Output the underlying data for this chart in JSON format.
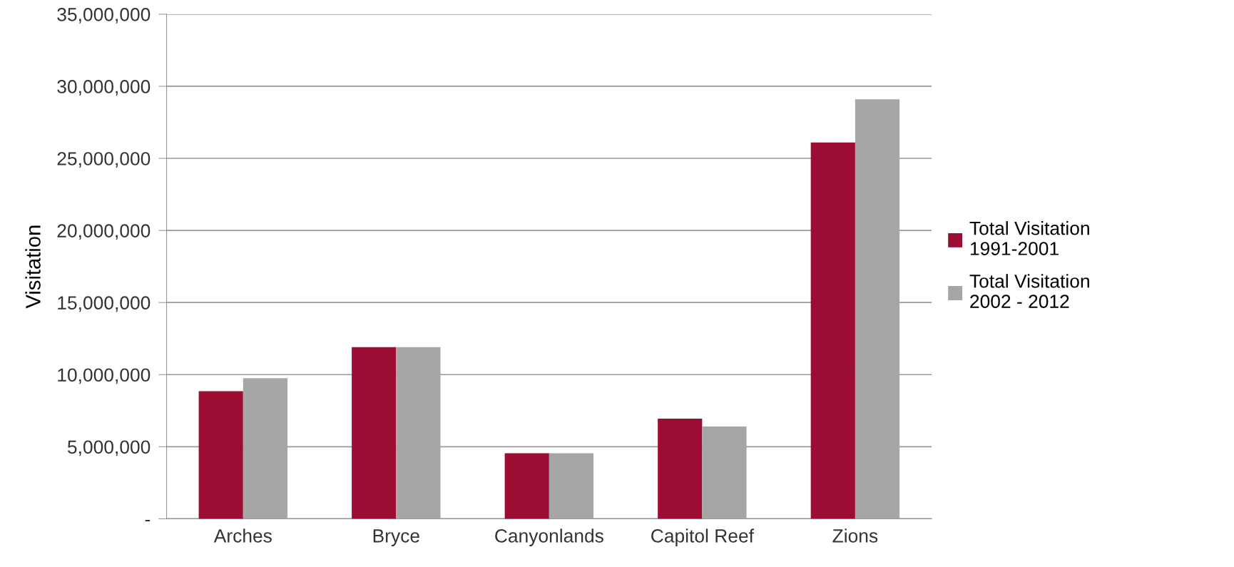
{
  "chart_data": {
    "type": "bar",
    "ylabel": "Visitation",
    "categories": [
      "Arches",
      "Bryce",
      "Canyonlands",
      "Capitol Reef",
      "Zions"
    ],
    "series": [
      {
        "name": "Total Visitation\n1991-2001",
        "color": "#9b0d33",
        "values": [
          8850000,
          11900000,
          4550000,
          6950000,
          26100000
        ]
      },
      {
        "name": "Total Visitation\n2002 - 2012",
        "color": "#a6a6a6",
        "values": [
          9750000,
          11900000,
          4550000,
          6400000,
          29100000
        ]
      }
    ],
    "ylim": [
      0,
      35000000
    ],
    "yticks": [
      {
        "value": 0,
        "label": "-"
      },
      {
        "value": 5000000,
        "label": "5,000,000"
      },
      {
        "value": 10000000,
        "label": "10,000,000"
      },
      {
        "value": 15000000,
        "label": "15,000,000"
      },
      {
        "value": 20000000,
        "label": "20,000,000"
      },
      {
        "value": 25000000,
        "label": "25,000,000"
      },
      {
        "value": 30000000,
        "label": "30,000,000"
      },
      {
        "value": 35000000,
        "label": "35,000,000"
      }
    ],
    "grid": "y",
    "legend": "right"
  }
}
